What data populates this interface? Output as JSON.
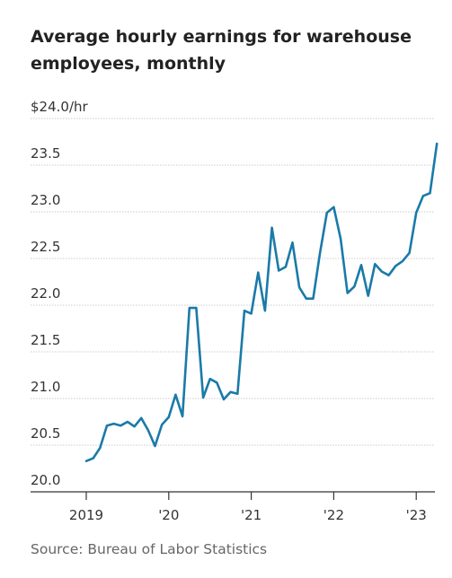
{
  "title": "Average hourly earnings for warehouse employees, monthly",
  "source": "Source: Bureau of Labor Statistics",
  "colors": {
    "line": "#1a7aa8",
    "grid": "#cccccc",
    "axis": "#333333"
  },
  "chart_data": {
    "type": "line",
    "title": "Average hourly earnings for warehouse employees, monthly",
    "xlabel": "",
    "ylabel": "",
    "ylim": [
      20.0,
      24.0
    ],
    "y_ticks": [
      20.0,
      20.5,
      21.0,
      21.5,
      22.0,
      22.5,
      23.0,
      23.5,
      24.0
    ],
    "y_tick_labels": [
      "20.0",
      "20.5",
      "21.0",
      "21.5",
      "22.0",
      "22.5",
      "23.0",
      "23.5",
      "$24.0/hr"
    ],
    "x_ticks": [
      0,
      12,
      24,
      36,
      48
    ],
    "x_tick_labels": [
      "2019",
      "'20",
      "'21",
      "'22",
      "'23"
    ],
    "start": "2019-01",
    "grid": true,
    "series": [
      {
        "values": [
          20.33,
          20.36,
          20.47,
          20.71,
          20.73,
          20.71,
          20.75,
          20.7,
          20.79,
          20.66,
          20.49,
          20.72,
          20.8,
          21.04,
          20.81,
          21.97,
          21.97,
          21.01,
          21.21,
          21.17,
          20.99,
          21.07,
          21.05,
          21.94,
          21.91,
          22.35,
          21.94,
          22.83,
          22.37,
          22.41,
          22.67,
          22.19,
          22.07,
          22.07,
          22.56,
          22.99,
          23.05,
          22.71,
          22.13,
          22.2,
          22.43,
          22.1,
          22.44,
          22.36,
          22.32,
          22.42,
          22.47,
          22.56,
          22.99,
          23.17,
          23.2,
          23.73
        ]
      }
    ]
  }
}
